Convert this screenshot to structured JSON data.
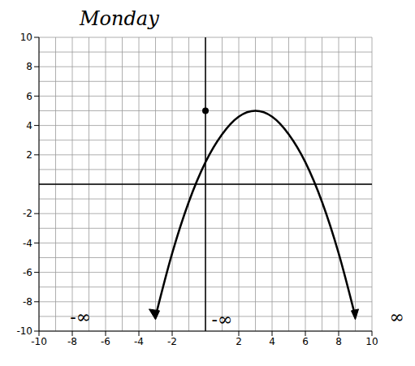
{
  "chart_data": {
    "type": "line",
    "title": "Monday",
    "xlim": [
      -10,
      10
    ],
    "ylim": [
      -10,
      10
    ],
    "xticks": [
      -10,
      -8,
      -6,
      -4,
      -2,
      2,
      4,
      6,
      8,
      10
    ],
    "yticks": [
      -10,
      -8,
      -6,
      -4,
      -2,
      2,
      4,
      6,
      8,
      10
    ],
    "grid": true,
    "series": [
      {
        "type": "line",
        "color": "#000000",
        "marker": "arrow",
        "x": [
          -3,
          -2,
          -1,
          0,
          1,
          2,
          3,
          4,
          5,
          6,
          7,
          8,
          9
        ],
        "values": [
          -9,
          -4.7,
          -1.2,
          1.5,
          3.4,
          4.6,
          5,
          4.6,
          3.4,
          1.5,
          -1.2,
          -4.7,
          -9
        ]
      },
      {
        "type": "scatter",
        "color": "#000000",
        "x": [
          0
        ],
        "values": [
          5
        ]
      }
    ],
    "annotations": [
      {
        "text": "-∞",
        "x": -7.5,
        "y": -9
      },
      {
        "text": "∞",
        "x": 11.5,
        "y": -9
      },
      {
        "text": "-∞",
        "x": 1,
        "y": -9.2
      }
    ]
  }
}
